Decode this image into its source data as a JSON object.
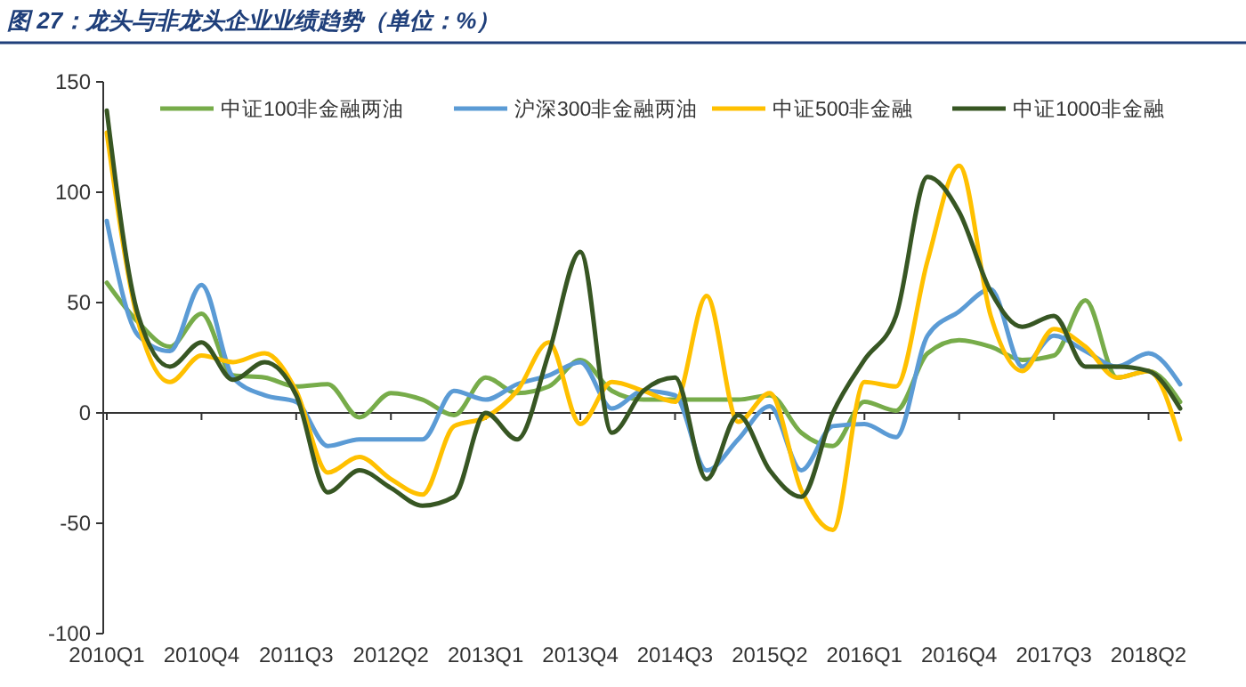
{
  "chart_data": {
    "type": "line",
    "title": "图 27：龙头与非龙头企业业绩趋势（单位：%）",
    "categories": [
      "2010Q1",
      null,
      null,
      "2010Q4",
      null,
      null,
      "2011Q3",
      null,
      null,
      "2012Q2",
      null,
      null,
      "2013Q1",
      null,
      null,
      "2013Q4",
      null,
      null,
      "2014Q3",
      null,
      null,
      "2015Q2",
      null,
      null,
      "2016Q1",
      null,
      null,
      "2016Q4",
      null,
      null,
      "2017Q3",
      null,
      null,
      "2018Q2",
      null
    ],
    "series": [
      {
        "name": "中证100非金融两油",
        "color": "#77ac4a",
        "values": [
          59,
          41,
          30,
          45,
          17,
          16,
          12,
          13,
          -2,
          9,
          6,
          -1,
          16,
          9,
          12,
          24,
          10,
          6,
          6,
          6,
          6,
          8,
          -9,
          -15,
          5,
          1,
          27,
          33,
          30,
          24,
          26,
          51,
          16,
          19,
          5
        ]
      },
      {
        "name": "沪深300非金融两油",
        "color": "#5b9bd5",
        "values": [
          87,
          35,
          28,
          58,
          16,
          8,
          5,
          -15,
          -12,
          -12,
          -12,
          10,
          6,
          13,
          17,
          23,
          2,
          10,
          8,
          -26,
          -12,
          3,
          -26,
          -6,
          -5,
          -11,
          35,
          46,
          56,
          21,
          35,
          28,
          21,
          27,
          13
        ]
      },
      {
        "name": "中证500非金融",
        "color": "#ffc000",
        "values": [
          127,
          41,
          14,
          26,
          23,
          27,
          10,
          -27,
          -20,
          -30,
          -37,
          -6,
          -2,
          10,
          32,
          -5,
          14,
          10,
          5,
          53,
          -4,
          9,
          -35,
          -53,
          14,
          12,
          69,
          112,
          44,
          19,
          38,
          30,
          16,
          19,
          -12
        ]
      },
      {
        "name": "中证1000非金融",
        "color": "#375623",
        "values": [
          137,
          44,
          21,
          32,
          15,
          23,
          8,
          -36,
          -26,
          -34,
          -42,
          -38,
          0,
          -12,
          27,
          73,
          -9,
          10,
          16,
          -30,
          -1,
          -26,
          -38,
          0,
          24,
          44,
          107,
          91,
          55,
          39,
          44,
          21,
          21,
          19,
          2
        ]
      }
    ],
    "ylim": [
      -100,
      150
    ],
    "yticks": [
      -100,
      -50,
      0,
      50,
      100,
      150
    ],
    "legend": "top"
  }
}
